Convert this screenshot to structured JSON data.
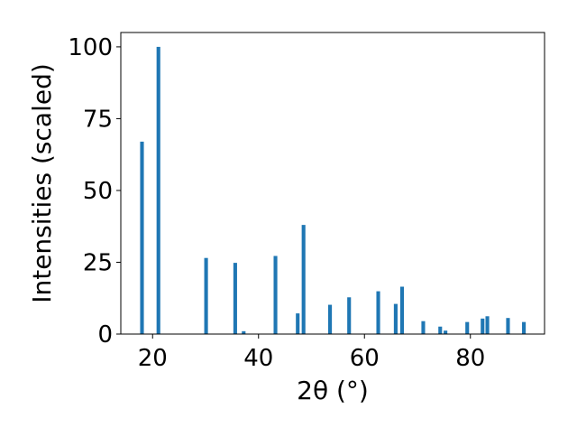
{
  "chart_data": {
    "type": "bar",
    "title": "",
    "xlabel": "2θ (°)",
    "ylabel": "Intensities (scaled)",
    "xlim": [
      14.0,
      94.0
    ],
    "ylim": [
      0,
      105
    ],
    "xticks": [
      20,
      40,
      60,
      80
    ],
    "yticks": [
      0,
      25,
      50,
      75,
      100
    ],
    "grid": false,
    "bar_color": "#1f77b4",
    "bar_width": 0.7,
    "points": [
      {
        "x": 18.0,
        "y": 67
      },
      {
        "x": 21.1,
        "y": 100
      },
      {
        "x": 30.1,
        "y": 26.5
      },
      {
        "x": 35.6,
        "y": 24.8
      },
      {
        "x": 37.2,
        "y": 1.0
      },
      {
        "x": 43.2,
        "y": 27.2
      },
      {
        "x": 47.4,
        "y": 7.2
      },
      {
        "x": 48.5,
        "y": 38.0
      },
      {
        "x": 53.5,
        "y": 10.2
      },
      {
        "x": 57.1,
        "y": 12.8
      },
      {
        "x": 62.6,
        "y": 14.9
      },
      {
        "x": 65.9,
        "y": 10.5
      },
      {
        "x": 67.1,
        "y": 16.5
      },
      {
        "x": 71.1,
        "y": 4.5
      },
      {
        "x": 74.3,
        "y": 2.6
      },
      {
        "x": 75.3,
        "y": 1.2
      },
      {
        "x": 79.4,
        "y": 4.2
      },
      {
        "x": 82.3,
        "y": 5.4
      },
      {
        "x": 83.2,
        "y": 6.2
      },
      {
        "x": 87.1,
        "y": 5.6
      },
      {
        "x": 90.1,
        "y": 4.2
      }
    ]
  }
}
